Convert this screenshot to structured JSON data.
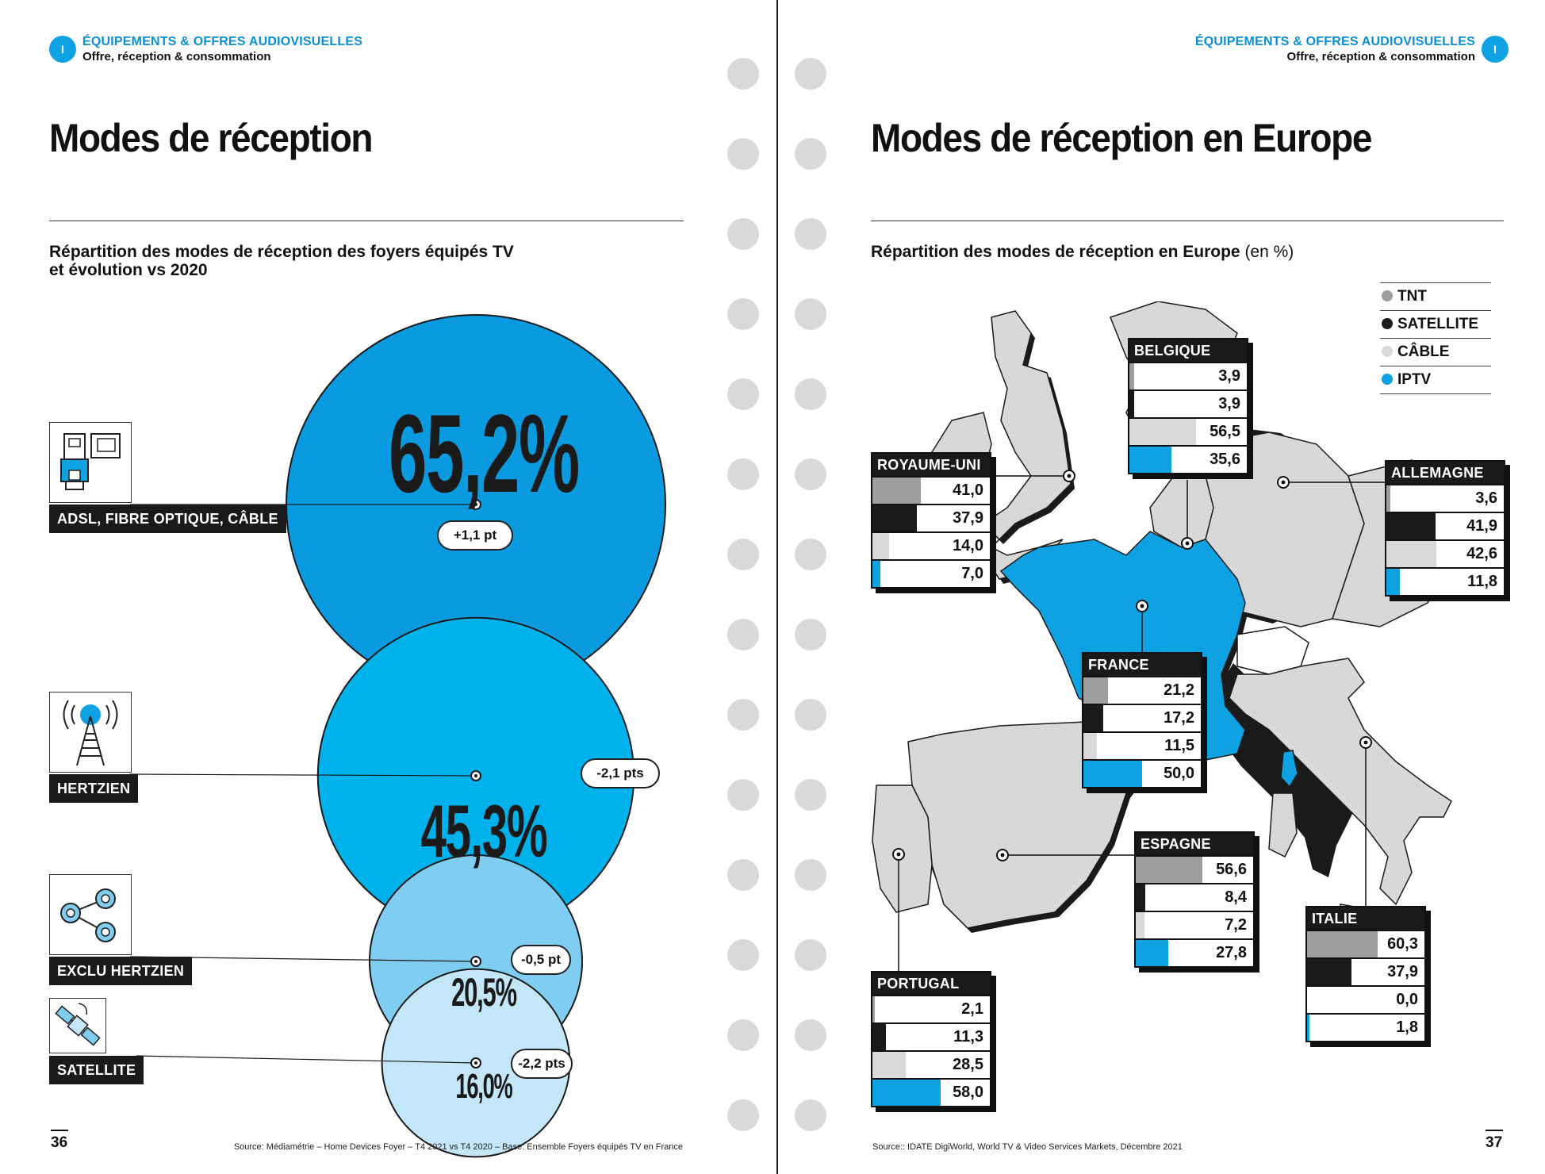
{
  "header_left": {
    "section_badge": "I",
    "section_title": "ÉQUIPEMENTS & OFFRES AUDIOVISUELLES",
    "section_subtitle": "Offre, réception & consommation"
  },
  "header_right": {
    "section_badge": "I",
    "section_title": "ÉQUIPEMENTS & OFFRES AUDIOVISUELLES",
    "section_subtitle": "Offre, réception & consommation"
  },
  "left_page": {
    "title": "Modes de réception",
    "subtitle_line1": "Répartition des modes de réception des foyers équipés TV",
    "subtitle_line2": "et évolution vs 2020",
    "page_number": "36",
    "source": "Source: Médiamétrie – Home Devices Foyer – T4 2021 vs T4 2020 – Base: Ensemble Foyers équipés TV en France"
  },
  "right_page": {
    "title": "Modes de réception en Europe",
    "subtitle_bold": "Répartition des modes de réception en Europe",
    "subtitle_light": "(en %)",
    "page_number": "37",
    "source": "Source:: IDATE DigiWorld, World TV & Video Services Markets, Décembre 2021"
  },
  "colors": {
    "blue_dark": "#0a9ae0",
    "blue_mid": "#00b2ec",
    "blue_light": "#7fcdf1",
    "blue_pale": "#c3e6f8",
    "tnt": "#9e9e9e",
    "satellite": "#1a1a1a",
    "cable": "#d9d9d9",
    "iptv": "#0ea2e2",
    "map_grey": "#d8d8d8",
    "france": "#0ea2e2"
  },
  "chart_data": [
    {
      "type": "bubble",
      "series": [
        {
          "label": "ADSL, FIBRE OPTIQUE, CÂBLE",
          "value": 65.2,
          "value_label": "65,2%",
          "change_label": "+1,1 pt",
          "icon": "router-icon"
        },
        {
          "label": "HERTZIEN",
          "value": 45.3,
          "value_label": "45,3%",
          "change_label": "-2,1 pts",
          "icon": "antenna-tower-icon"
        },
        {
          "label": "EXCLU HERTZIEN",
          "value": 20.5,
          "value_label": "20,5%",
          "change_label": "-0,5 pt",
          "icon": "network-nodes-icon"
        },
        {
          "label": "SATELLITE",
          "value": 16.0,
          "value_label": "16,0%",
          "change_label": "-2,2 pts",
          "icon": "satellite-icon"
        }
      ]
    },
    {
      "type": "table",
      "legend": [
        "TNT",
        "SATELLITE",
        "CÂBLE",
        "IPTV"
      ],
      "countries": [
        {
          "name": "BELGIQUE",
          "values": [
            3.9,
            3.9,
            56.5,
            35.6
          ],
          "labels": [
            "3,9",
            "3,9",
            "56,5",
            "35,6"
          ]
        },
        {
          "name": "ROYAUME-UNI",
          "values": [
            41.0,
            37.9,
            14.0,
            7.0
          ],
          "labels": [
            "41,0",
            "37,9",
            "14,0",
            "7,0"
          ]
        },
        {
          "name": "ALLEMAGNE",
          "values": [
            3.6,
            41.9,
            42.6,
            11.8
          ],
          "labels": [
            "3,6",
            "41,9",
            "42,6",
            "11,8"
          ]
        },
        {
          "name": "FRANCE",
          "values": [
            21.2,
            17.2,
            11.5,
            50.0
          ],
          "labels": [
            "21,2",
            "17,2",
            "11,5",
            "50,0"
          ]
        },
        {
          "name": "ESPAGNE",
          "values": [
            56.6,
            8.4,
            7.2,
            27.8
          ],
          "labels": [
            "56,6",
            "8,4",
            "7,2",
            "27,8"
          ]
        },
        {
          "name": "ITALIE",
          "values": [
            60.3,
            37.9,
            0.0,
            1.8
          ],
          "labels": [
            "60,3",
            "37,9",
            "0,0",
            "1,8"
          ]
        },
        {
          "name": "PORTUGAL",
          "values": [
            2.1,
            11.3,
            28.5,
            58.0
          ],
          "labels": [
            "2,1",
            "11,3",
            "28,5",
            "58,0"
          ]
        }
      ]
    }
  ]
}
